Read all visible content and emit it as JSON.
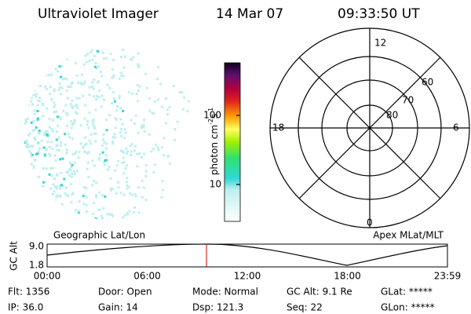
{
  "header": {
    "title": "Ultraviolet Imager",
    "date": "14 Mar 07",
    "time": "09:33:50 UT"
  },
  "colorbar": {
    "label": {
      "unit": "photon cm",
      "exp1": "-2",
      "unit2": "s",
      "exp2": "-1"
    },
    "ticks": [
      "100",
      "10"
    ]
  },
  "polar": {
    "mlt_labels": [
      "12",
      "18",
      "6",
      "0"
    ],
    "lat_labels": [
      "60",
      "70",
      "80"
    ]
  },
  "timeline": {
    "left_label": "Geographic Lat/Lon",
    "right_label": "Apex MLat/MLT",
    "y_label": "GC Alt",
    "y_ticks": [
      "9.0",
      "1.8"
    ],
    "x_ticks": [
      "00:00",
      "06:00",
      "12:00",
      "18:00",
      "23:59"
    ]
  },
  "footer": [
    [
      "Flt: 1356",
      "Door: Open",
      "Mode: Normal",
      "GC Alt: 9.1 Re",
      "GLat: *****"
    ],
    [
      "IP: 36.0",
      "Gain: 14",
      "Dsp: 121.3",
      "Seq: 22",
      "GLon: *****"
    ]
  ]
}
